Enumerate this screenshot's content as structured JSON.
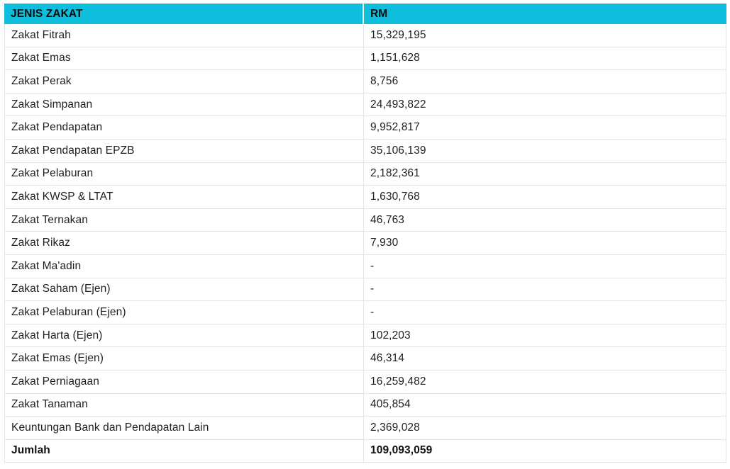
{
  "table": {
    "columns": [
      "JENIS ZAKAT",
      "RM"
    ],
    "rows": [
      {
        "label": "Zakat Fitrah",
        "value": "15,329,195"
      },
      {
        "label": "Zakat Emas",
        "value": "1,151,628"
      },
      {
        "label": "Zakat Perak",
        "value": "8,756"
      },
      {
        "label": "Zakat Simpanan",
        "value": "24,493,822"
      },
      {
        "label": "Zakat Pendapatan",
        "value": "9,952,817"
      },
      {
        "label": "Zakat Pendapatan EPZB",
        "value": "35,106,139"
      },
      {
        "label": "Zakat Pelaburan",
        "value": "2,182,361"
      },
      {
        "label": "Zakat KWSP & LTAT",
        "value": "1,630,768"
      },
      {
        "label": "Zakat Ternakan",
        "value": "46,763"
      },
      {
        "label": "Zakat Rikaz",
        "value": "7,930"
      },
      {
        "label": "Zakat Ma'adin",
        "value": "-"
      },
      {
        "label": "Zakat Saham (Ejen)",
        "value": "-"
      },
      {
        "label": "Zakat Pelaburan (Ejen)",
        "value": "-"
      },
      {
        "label": "Zakat Harta (Ejen)",
        "value": "102,203"
      },
      {
        "label": "Zakat Emas (Ejen)",
        "value": "46,314"
      },
      {
        "label": "Zakat Perniagaan",
        "value": "16,259,482"
      },
      {
        "label": "Zakat Tanaman",
        "value": "405,854"
      },
      {
        "label": "Keuntungan Bank dan Pendapatan Lain",
        "value": "2,369,028"
      },
      {
        "label": "Jumlah",
        "value": "109,093,059",
        "is_total": true
      }
    ],
    "colors": {
      "header_bg": "#0ebedc",
      "header_text": "#0a0a0a",
      "row_border": "#e3e5e7",
      "body_text": "#1f1f1f"
    }
  },
  "chart_data": {
    "type": "table",
    "title": "",
    "columns": [
      "JENIS ZAKAT",
      "RM"
    ],
    "rows": [
      [
        "Zakat Fitrah",
        15329195
      ],
      [
        "Zakat Emas",
        1151628
      ],
      [
        "Zakat Perak",
        8756
      ],
      [
        "Zakat Simpanan",
        24493822
      ],
      [
        "Zakat Pendapatan",
        9952817
      ],
      [
        "Zakat Pendapatan EPZB",
        35106139
      ],
      [
        "Zakat Pelaburan",
        2182361
      ],
      [
        "Zakat KWSP & LTAT",
        1630768
      ],
      [
        "Zakat Ternakan",
        46763
      ],
      [
        "Zakat Rikaz",
        7930
      ],
      [
        "Zakat Ma'adin",
        null
      ],
      [
        "Zakat Saham (Ejen)",
        null
      ],
      [
        "Zakat Pelaburan (Ejen)",
        null
      ],
      [
        "Zakat Harta (Ejen)",
        102203
      ],
      [
        "Zakat Emas (Ejen)",
        46314
      ],
      [
        "Zakat Perniagaan",
        16259482
      ],
      [
        "Zakat Tanaman",
        405854
      ],
      [
        "Keuntungan Bank dan Pendapatan Lain",
        2369028
      ]
    ],
    "total_row": [
      "Jumlah",
      109093059
    ]
  }
}
